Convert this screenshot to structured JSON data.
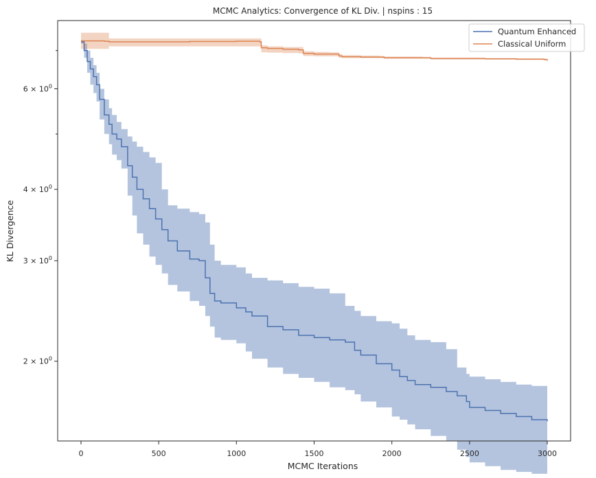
{
  "chart_data": {
    "type": "line",
    "title": "MCMC Analytics: Convergence of KL Div. | nspins : 15",
    "xlabel": "MCMC Iterations",
    "ylabel": "KL Divergence",
    "xlim": [
      -150,
      3150
    ],
    "ylim": [
      1.45,
      7.9
    ],
    "yscale": "log",
    "grid": false,
    "legend_position": "top-right",
    "xticks": [
      0,
      500,
      1000,
      1500,
      2000,
      2500,
      3000
    ],
    "xtick_labels": [
      "0",
      "500",
      "1000",
      "1500",
      "2000",
      "2500",
      "3000"
    ],
    "yticks_major": [
      2,
      3,
      4,
      6
    ],
    "ytick_major_labels": [
      "2 × 10⁰",
      "3 × 10⁰",
      "4 × 10⁰",
      "6 × 10⁰"
    ],
    "ytick_mantissas": [
      "2",
      "3",
      "4",
      "6"
    ],
    "ytick_exponent_base": "× 10",
    "ytick_exponent": "0",
    "yticks_minor": [
      5,
      7
    ],
    "series": [
      {
        "name": "Quantum Enhanced",
        "color": "#4c72b0",
        "band_color": "#4c72b0",
        "x": [
          0,
          20,
          40,
          60,
          80,
          100,
          120,
          150,
          180,
          200,
          230,
          260,
          300,
          330,
          360,
          400,
          440,
          480,
          520,
          560,
          620,
          700,
          760,
          800,
          830,
          860,
          900,
          1000,
          1060,
          1100,
          1200,
          1300,
          1400,
          1500,
          1600,
          1700,
          1760,
          1800,
          1900,
          2000,
          2050,
          2100,
          2150,
          2250,
          2350,
          2420,
          2480,
          2500,
          2600,
          2700,
          2800,
          2900,
          3000
        ],
        "y": [
          7.25,
          7.0,
          6.7,
          6.5,
          6.3,
          6.1,
          5.75,
          5.4,
          5.2,
          5.0,
          4.9,
          4.75,
          4.4,
          4.2,
          4.0,
          3.85,
          3.7,
          3.55,
          3.4,
          3.25,
          3.12,
          3.02,
          3.0,
          2.8,
          2.63,
          2.55,
          2.53,
          2.48,
          2.44,
          2.4,
          2.3,
          2.27,
          2.22,
          2.2,
          2.18,
          2.16,
          2.09,
          2.05,
          1.98,
          1.93,
          1.88,
          1.85,
          1.82,
          1.8,
          1.77,
          1.74,
          1.7,
          1.66,
          1.64,
          1.62,
          1.6,
          1.58,
          1.57
        ],
        "upper": [
          7.3,
          7.2,
          7.0,
          6.8,
          6.6,
          6.4,
          6.0,
          5.75,
          5.55,
          5.4,
          5.25,
          5.1,
          4.95,
          4.85,
          4.75,
          4.65,
          4.55,
          4.45,
          4.0,
          3.75,
          3.7,
          3.65,
          3.62,
          3.5,
          3.2,
          3.0,
          2.95,
          2.92,
          2.85,
          2.8,
          2.77,
          2.74,
          2.7,
          2.68,
          2.63,
          2.5,
          2.45,
          2.4,
          2.35,
          2.33,
          2.28,
          2.22,
          2.18,
          2.16,
          2.1,
          1.95,
          1.9,
          1.88,
          1.86,
          1.84,
          1.82,
          1.81,
          1.8
        ],
        "lower": [
          7.2,
          6.8,
          6.4,
          6.1,
          5.9,
          5.7,
          5.3,
          5.0,
          4.8,
          4.6,
          4.5,
          4.35,
          3.9,
          3.6,
          3.35,
          3.2,
          3.05,
          2.95,
          2.85,
          2.72,
          2.65,
          2.55,
          2.5,
          2.4,
          2.3,
          2.2,
          2.18,
          2.15,
          2.08,
          2.02,
          1.95,
          1.9,
          1.87,
          1.84,
          1.8,
          1.78,
          1.75,
          1.7,
          1.66,
          1.6,
          1.58,
          1.55,
          1.52,
          1.48,
          1.45,
          1.4,
          1.36,
          1.33,
          1.31,
          1.29,
          1.28,
          1.27,
          1.26
        ]
      },
      {
        "name": "Classical Uniform",
        "color": "#dd8452",
        "band_color": "#dd8452",
        "x": [
          0,
          50,
          150,
          180,
          400,
          700,
          1000,
          1100,
          1150,
          1160,
          1200,
          1300,
          1400,
          1430,
          1500,
          1600,
          1660,
          1680,
          1800,
          1920,
          1950,
          2100,
          2200,
          2250,
          2400,
          2600,
          2800,
          2980,
          3000
        ],
        "y": [
          7.28,
          7.28,
          7.27,
          7.25,
          7.25,
          7.26,
          7.27,
          7.27,
          7.25,
          7.08,
          7.06,
          7.04,
          7.02,
          6.92,
          6.9,
          6.9,
          6.85,
          6.83,
          6.82,
          6.82,
          6.8,
          6.8,
          6.8,
          6.78,
          6.78,
          6.77,
          6.76,
          6.75,
          6.72
        ],
        "upper": [
          7.52,
          7.52,
          7.52,
          7.35,
          7.35,
          7.35,
          7.35,
          7.35,
          7.35,
          7.15,
          7.12,
          7.1,
          7.1,
          6.98,
          6.96,
          6.95,
          6.9,
          6.87,
          6.86,
          6.85,
          6.83,
          6.83,
          6.82,
          6.8,
          6.8,
          6.79,
          6.78,
          6.77,
          6.74
        ],
        "lower": [
          7.05,
          7.05,
          7.05,
          7.12,
          7.12,
          7.12,
          7.12,
          7.12,
          7.12,
          6.95,
          6.94,
          6.93,
          6.92,
          6.85,
          6.84,
          6.84,
          6.8,
          6.79,
          6.79,
          6.79,
          6.77,
          6.77,
          6.77,
          6.75,
          6.75,
          6.75,
          6.74,
          6.73,
          6.7
        ]
      }
    ]
  }
}
